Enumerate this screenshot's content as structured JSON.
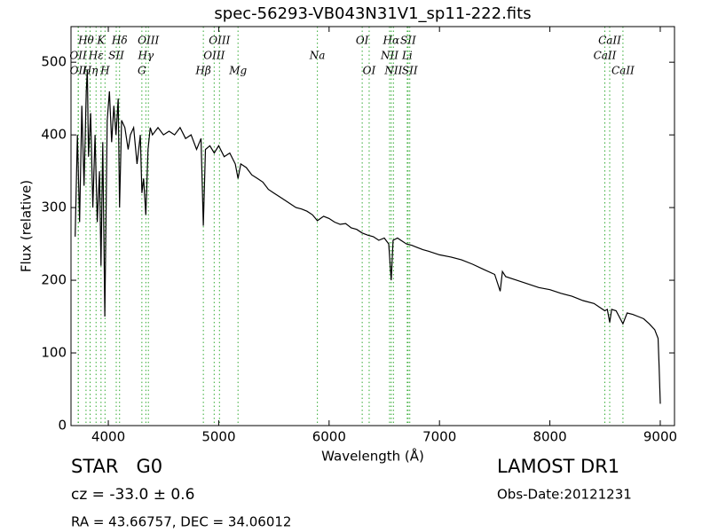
{
  "chart_data": {
    "type": "line",
    "title": "spec-56293-VB043N31V1_sp11-222.fits",
    "x_label": "Wavelength (Å)",
    "y_label": "Flux (relative)",
    "xlim": [
      3662,
      9129
    ],
    "ylim": [
      0,
      549
    ],
    "xticks": [
      4000,
      5000,
      6000,
      7000,
      8000,
      9000
    ],
    "yticks": [
      0,
      100,
      200,
      300,
      400,
      500
    ],
    "color": "#000000",
    "line_color": "#33aa33",
    "x": [
      3700,
      3720,
      3740,
      3760,
      3780,
      3800,
      3810,
      3820,
      3840,
      3860,
      3880,
      3900,
      3920,
      3934,
      3950,
      3968,
      3990,
      4010,
      4030,
      4050,
      4070,
      4090,
      4102,
      4120,
      4150,
      4180,
      4200,
      4230,
      4260,
      4290,
      4304,
      4320,
      4340,
      4360,
      4380,
      4400,
      4450,
      4500,
      4550,
      4600,
      4650,
      4700,
      4750,
      4800,
      4840,
      4861,
      4880,
      4920,
      4960,
      5000,
      5050,
      5100,
      5150,
      5175,
      5200,
      5250,
      5300,
      5350,
      5400,
      5450,
      5500,
      5550,
      5600,
      5650,
      5700,
      5750,
      5800,
      5850,
      5894,
      5950,
      6000,
      6050,
      6100,
      6150,
      6200,
      6250,
      6300,
      6350,
      6400,
      6450,
      6500,
      6540,
      6563,
      6580,
      6620,
      6650,
      6700,
      6750,
      6800,
      6850,
      6900,
      7000,
      7100,
      7200,
      7300,
      7400,
      7500,
      7550,
      7570,
      7600,
      7700,
      7800,
      7900,
      8000,
      8100,
      8200,
      8300,
      8400,
      8498,
      8520,
      8542,
      8560,
      8600,
      8662,
      8700,
      8750,
      8800,
      8850,
      8900,
      8950,
      8980,
      8990,
      9000
    ],
    "values": [
      260,
      400,
      280,
      440,
      330,
      460,
      490,
      370,
      430,
      300,
      400,
      280,
      350,
      220,
      390,
      150,
      420,
      460,
      390,
      440,
      400,
      450,
      300,
      420,
      410,
      380,
      400,
      410,
      360,
      400,
      320,
      340,
      290,
      380,
      410,
      400,
      410,
      400,
      405,
      400,
      410,
      395,
      400,
      380,
      395,
      275,
      380,
      385,
      375,
      385,
      370,
      375,
      360,
      340,
      360,
      355,
      345,
      340,
      335,
      325,
      320,
      315,
      310,
      305,
      300,
      298,
      295,
      290,
      282,
      288,
      285,
      280,
      277,
      278,
      272,
      270,
      265,
      262,
      260,
      255,
      258,
      250,
      200,
      255,
      258,
      255,
      250,
      248,
      245,
      242,
      240,
      235,
      232,
      228,
      222,
      215,
      208,
      185,
      212,
      205,
      200,
      195,
      190,
      187,
      182,
      178,
      172,
      168,
      158,
      160,
      142,
      160,
      158,
      140,
      155,
      153,
      150,
      147,
      140,
      132,
      120,
      80,
      30
    ],
    "line_labels": [
      [
        {
          "text": "Hθ",
          "x": 3798
        },
        {
          "text": "K",
          "x": 3934
        },
        {
          "text": "Hδ",
          "x": 4102
        },
        {
          "text": "OIII",
          "x": 4363
        },
        {
          "text": "OIII",
          "x": 5007
        },
        {
          "text": "OI",
          "x": 6300
        },
        {
          "text": "Hα",
          "x": 6563
        },
        {
          "text": "SII",
          "x": 6716
        },
        {
          "text": "CaII",
          "x": 8542
        }
      ],
      [
        {
          "text": "OII",
          "x": 3727
        },
        {
          "text": "Hε",
          "x": 3889
        },
        {
          "text": "SII",
          "x": 4072
        },
        {
          "text": "Hγ",
          "x": 4340
        },
        {
          "text": "OIII",
          "x": 4959
        },
        {
          "text": "Na",
          "x": 5894
        },
        {
          "text": "NII",
          "x": 6548
        },
        {
          "text": "Li",
          "x": 6708
        },
        {
          "text": "CaII",
          "x": 8498
        }
      ],
      [
        {
          "text": "OII",
          "x": 3729
        },
        {
          "text": "Hη",
          "x": 3835
        },
        {
          "text": "H",
          "x": 3970
        },
        {
          "text": "G",
          "x": 4304
        },
        {
          "text": "Hβ",
          "x": 4861
        },
        {
          "text": "Mg",
          "x": 5175
        },
        {
          "text": "OI",
          "x": 6363
        },
        {
          "text": "NII",
          "x": 6583
        },
        {
          "text": "SII",
          "x": 6731
        },
        {
          "text": "CaII",
          "x": 8662
        }
      ]
    ],
    "footer": {
      "class": "STAR   G0",
      "cz": "cz = -33.0 ± 0.6",
      "coords": "RA = 43.66757, DEC = 34.06012",
      "survey": "LAMOST DR1",
      "date": "Obs-Date:20121231"
    }
  }
}
